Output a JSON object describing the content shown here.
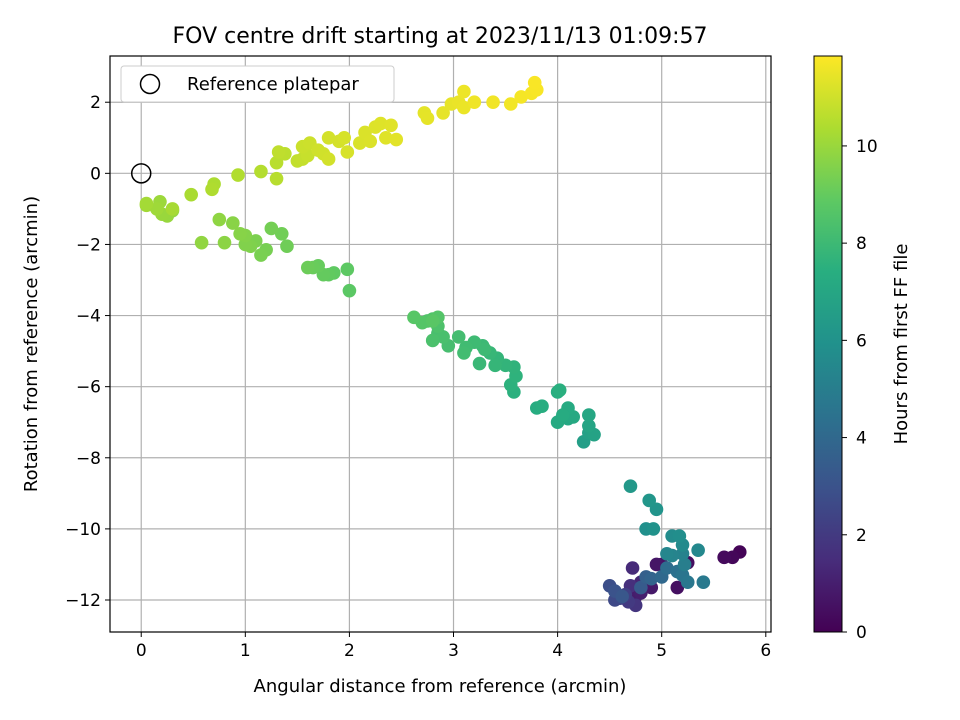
{
  "chart_data": {
    "type": "scatter",
    "title": "FOV centre drift starting at 2023/11/13 01:09:57",
    "xlabel": "Angular distance from reference (arcmin)",
    "ylabel": "Rotation from reference (arcmin)",
    "xlim": [
      -0.3,
      6.05
    ],
    "ylim": [
      -12.9,
      3.3
    ],
    "xticks": [
      0,
      1,
      2,
      3,
      4,
      5,
      6
    ],
    "yticks": [
      -12,
      -10,
      -8,
      -6,
      -4,
      -2,
      0,
      2
    ],
    "grid": true,
    "legend": {
      "placement": "top-left",
      "entries": [
        "Reference platepar"
      ]
    },
    "reference_point": {
      "x": 0,
      "y": 0,
      "label": "Reference platepar"
    },
    "colorbar": {
      "label": "Hours from first FF file",
      "min": 0,
      "max": 11.85,
      "ticks": [
        0,
        2,
        4,
        6,
        8,
        10
      ],
      "colormap": "viridis"
    },
    "points": [
      [
        5.75,
        -10.65,
        0.1
      ],
      [
        5.68,
        -10.8,
        0.2
      ],
      [
        5.6,
        -10.8,
        0.3
      ],
      [
        5.25,
        -10.95,
        0.4
      ],
      [
        5.15,
        -11.65,
        0.5
      ],
      [
        5.0,
        -11.0,
        0.6
      ],
      [
        4.95,
        -11.0,
        0.7
      ],
      [
        4.9,
        -11.65,
        0.8
      ],
      [
        4.75,
        -11.9,
        0.9
      ],
      [
        4.8,
        -11.8,
        1.0
      ],
      [
        4.8,
        -11.5,
        1.2
      ],
      [
        4.72,
        -11.1,
        1.4
      ],
      [
        4.7,
        -11.6,
        1.6
      ],
      [
        4.75,
        -12.15,
        1.8
      ],
      [
        4.68,
        -12.05,
        2.0
      ],
      [
        4.65,
        -11.85,
        2.2
      ],
      [
        4.6,
        -11.95,
        2.4
      ],
      [
        4.55,
        -12.0,
        2.6
      ],
      [
        4.5,
        -11.6,
        2.8
      ],
      [
        4.55,
        -11.75,
        3.0
      ],
      [
        4.62,
        -11.9,
        3.2
      ],
      [
        4.8,
        -11.65,
        3.4
      ],
      [
        4.85,
        -11.35,
        3.6
      ],
      [
        4.9,
        -11.4,
        3.8
      ],
      [
        5.0,
        -11.35,
        4.0
      ],
      [
        5.05,
        -11.1,
        4.2
      ],
      [
        5.15,
        -11.2,
        4.4
      ],
      [
        5.2,
        -11.3,
        4.6
      ],
      [
        5.25,
        -11.5,
        4.7
      ],
      [
        5.4,
        -11.5,
        4.8
      ],
      [
        5.22,
        -11.0,
        5.0
      ],
      [
        5.2,
        -10.7,
        5.2
      ],
      [
        5.1,
        -10.75,
        5.3
      ],
      [
        5.05,
        -10.7,
        5.4
      ],
      [
        5.35,
        -10.6,
        5.5
      ],
      [
        5.2,
        -10.45,
        5.6
      ],
      [
        5.1,
        -10.2,
        5.7
      ],
      [
        5.17,
        -10.2,
        5.8
      ],
      [
        4.85,
        -10.0,
        5.9
      ],
      [
        4.92,
        -10.0,
        6.0
      ],
      [
        4.95,
        -9.45,
        6.1
      ],
      [
        4.88,
        -9.2,
        6.2
      ],
      [
        4.7,
        -8.8,
        6.3
      ],
      [
        4.25,
        -7.55,
        6.6
      ],
      [
        4.3,
        -7.3,
        6.7
      ],
      [
        4.35,
        -7.35,
        6.8
      ],
      [
        4.3,
        -7.1,
        6.9
      ],
      [
        4.3,
        -6.8,
        7.0
      ],
      [
        4.1,
        -6.9,
        7.05
      ],
      [
        4.15,
        -6.85,
        7.1
      ],
      [
        4.0,
        -7.0,
        7.15
      ],
      [
        4.1,
        -6.6,
        7.2
      ],
      [
        4.05,
        -6.8,
        7.25
      ],
      [
        3.8,
        -6.6,
        7.3
      ],
      [
        3.85,
        -6.55,
        7.35
      ],
      [
        4.0,
        -6.15,
        7.4
      ],
      [
        4.02,
        -6.1,
        7.45
      ],
      [
        3.58,
        -6.15,
        7.5
      ],
      [
        3.55,
        -5.95,
        7.55
      ],
      [
        3.6,
        -5.7,
        7.6
      ],
      [
        3.58,
        -5.45,
        7.65
      ],
      [
        3.5,
        -5.4,
        7.7
      ],
      [
        3.42,
        -5.2,
        7.75
      ],
      [
        3.4,
        -5.4,
        7.8
      ],
      [
        3.35,
        -5.05,
        7.85
      ],
      [
        3.25,
        -5.35,
        7.9
      ],
      [
        3.28,
        -4.85,
        7.95
      ],
      [
        3.3,
        -4.95,
        8.0
      ],
      [
        3.2,
        -4.75,
        8.05
      ],
      [
        3.12,
        -4.9,
        8.1
      ],
      [
        3.1,
        -5.05,
        8.15
      ],
      [
        3.05,
        -4.6,
        8.2
      ],
      [
        2.95,
        -4.85,
        8.25
      ],
      [
        2.85,
        -4.5,
        8.3
      ],
      [
        2.9,
        -4.6,
        8.35
      ],
      [
        2.8,
        -4.7,
        8.4
      ],
      [
        2.85,
        -4.3,
        8.45
      ],
      [
        2.8,
        -4.1,
        8.5
      ],
      [
        2.75,
        -4.15,
        8.55
      ],
      [
        2.85,
        -4.05,
        8.6
      ],
      [
        2.7,
        -4.2,
        8.65
      ],
      [
        2.62,
        -4.05,
        8.7
      ],
      [
        2.8,
        -4.15,
        8.75
      ],
      [
        2.0,
        -3.3,
        8.8
      ],
      [
        1.98,
        -2.7,
        8.85
      ],
      [
        1.85,
        -2.8,
        8.9
      ],
      [
        1.8,
        -2.85,
        8.95
      ],
      [
        1.75,
        -2.85,
        9.0
      ],
      [
        1.7,
        -2.6,
        9.05
      ],
      [
        1.65,
        -2.65,
        9.1
      ],
      [
        1.6,
        -2.65,
        9.15
      ],
      [
        1.4,
        -2.05,
        9.2
      ],
      [
        1.35,
        -1.7,
        9.25
      ],
      [
        1.25,
        -1.55,
        9.3
      ],
      [
        1.2,
        -2.15,
        9.35
      ],
      [
        1.15,
        -2.3,
        9.4
      ],
      [
        1.1,
        -1.9,
        9.45
      ],
      [
        1.05,
        -2.05,
        9.5
      ],
      [
        1.0,
        -2.0,
        9.55
      ],
      [
        1.0,
        -1.75,
        9.6
      ],
      [
        0.95,
        -1.7,
        9.65
      ],
      [
        0.88,
        -1.4,
        9.7
      ],
      [
        0.8,
        -1.95,
        9.75
      ],
      [
        0.75,
        -1.3,
        9.8
      ],
      [
        0.58,
        -1.95,
        9.85
      ],
      [
        0.3,
        -1.05,
        9.9
      ],
      [
        0.25,
        -1.2,
        9.95
      ],
      [
        0.2,
        -1.15,
        10.0
      ],
      [
        0.18,
        -0.8,
        10.05
      ],
      [
        0.15,
        -1.0,
        10.1
      ],
      [
        0.05,
        -0.9,
        10.15
      ],
      [
        0.05,
        -0.85,
        10.2
      ],
      [
        0.3,
        -1.0,
        10.25
      ],
      [
        0.48,
        -0.6,
        10.3
      ],
      [
        0.7,
        -0.3,
        10.35
      ],
      [
        0.68,
        -0.45,
        10.4
      ],
      [
        0.93,
        -0.05,
        10.45
      ],
      [
        1.15,
        0.05,
        10.5
      ],
      [
        1.3,
        -0.15,
        10.55
      ],
      [
        1.3,
        0.3,
        10.6
      ],
      [
        1.38,
        0.55,
        10.65
      ],
      [
        1.32,
        0.6,
        10.7
      ],
      [
        1.5,
        0.35,
        10.75
      ],
      [
        1.55,
        0.4,
        10.8
      ],
      [
        1.6,
        0.5,
        10.85
      ],
      [
        1.55,
        0.75,
        10.9
      ],
      [
        1.62,
        0.85,
        10.95
      ],
      [
        1.7,
        0.65,
        11.0
      ],
      [
        1.75,
        0.55,
        11.02
      ],
      [
        1.8,
        0.4,
        11.05
      ],
      [
        1.8,
        1.0,
        11.08
      ],
      [
        1.9,
        0.9,
        11.1
      ],
      [
        1.95,
        1.0,
        11.12
      ],
      [
        1.98,
        0.6,
        11.15
      ],
      [
        2.1,
        0.85,
        11.18
      ],
      [
        2.15,
        1.15,
        11.2
      ],
      [
        2.2,
        0.9,
        11.22
      ],
      [
        2.25,
        1.3,
        11.25
      ],
      [
        2.3,
        1.4,
        11.28
      ],
      [
        2.35,
        1.0,
        11.3
      ],
      [
        2.4,
        1.35,
        11.32
      ],
      [
        2.45,
        0.95,
        11.35
      ],
      [
        2.72,
        1.7,
        11.38
      ],
      [
        2.75,
        1.55,
        11.4
      ],
      [
        2.9,
        1.7,
        11.42
      ],
      [
        2.98,
        1.95,
        11.45
      ],
      [
        3.05,
        2.0,
        11.5
      ],
      [
        3.1,
        1.85,
        11.52
      ],
      [
        3.1,
        2.3,
        11.55
      ],
      [
        3.2,
        2.0,
        11.6
      ],
      [
        3.38,
        2.0,
        11.62
      ],
      [
        3.55,
        1.95,
        11.65
      ],
      [
        3.65,
        2.15,
        11.7
      ],
      [
        3.75,
        2.25,
        11.72
      ],
      [
        3.8,
        2.35,
        11.75
      ],
      [
        3.78,
        2.55,
        11.78
      ]
    ]
  }
}
